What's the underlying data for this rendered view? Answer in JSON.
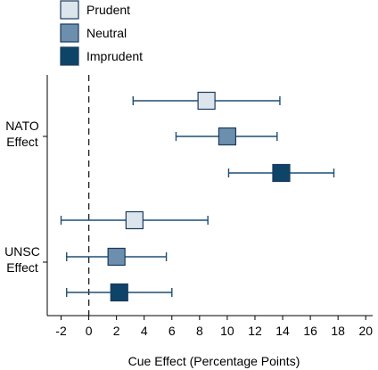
{
  "chart_data": {
    "type": "scatter",
    "xlabel": "Cue Effect (Percentage Points)",
    "xlim": [
      -3,
      20.5
    ],
    "x_ticks": [
      -2,
      0,
      2,
      4,
      6,
      8,
      10,
      12,
      14,
      16,
      18,
      20
    ],
    "x_tick_labels": [
      "-2",
      "0",
      "2",
      "4",
      "6",
      "8",
      "10",
      "12",
      "14",
      "16",
      "18",
      "20"
    ],
    "reference_line_x": 0,
    "groups": [
      {
        "label_line1": "NATO",
        "label_line2": "Effect"
      },
      {
        "label_line1": "UNSC",
        "label_line2": "Effect"
      }
    ],
    "legend_position": "top-left",
    "series": [
      {
        "name": "Prudent",
        "color": "#dde5ec",
        "points": [
          {
            "group": 0,
            "estimate": 8.5,
            "ci_low": 3.2,
            "ci_high": 13.8
          },
          {
            "group": 1,
            "estimate": 3.3,
            "ci_low": -2.0,
            "ci_high": 8.6
          }
        ]
      },
      {
        "name": "Neutral",
        "color": "#6b8fad",
        "points": [
          {
            "group": 0,
            "estimate": 10.0,
            "ci_low": 6.3,
            "ci_high": 13.6
          },
          {
            "group": 1,
            "estimate": 2.0,
            "ci_low": -1.6,
            "ci_high": 5.6
          }
        ]
      },
      {
        "name": "Imprudent",
        "color": "#0e4467",
        "points": [
          {
            "group": 0,
            "estimate": 13.9,
            "ci_low": 10.1,
            "ci_high": 17.7
          },
          {
            "group": 1,
            "estimate": 2.2,
            "ci_low": -1.6,
            "ci_high": 6.0
          }
        ]
      }
    ],
    "ci_color": "#1f4e73",
    "grid": false
  }
}
